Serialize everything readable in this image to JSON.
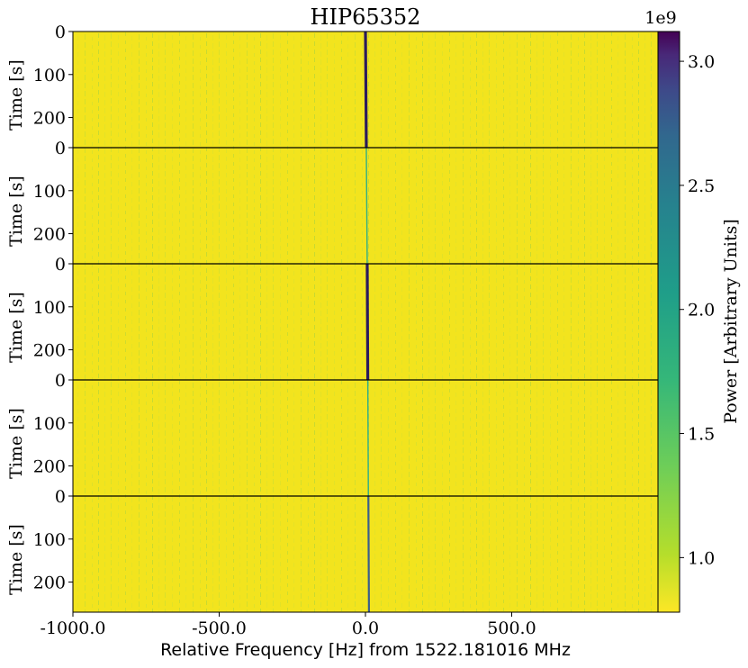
{
  "chart_data": {
    "type": "heatmap",
    "title": "HIP65352",
    "xlabel": "Relative Frequency [Hz] from 1522.181016 MHz",
    "ylabel": "Time [s]",
    "xlim": [
      -1000,
      1000
    ],
    "x_ticks": [
      -1000,
      -500,
      0,
      500
    ],
    "x_tick_labels": [
      "-1000.0",
      "-500.0",
      "0.0",
      "500.0"
    ],
    "panel_ylim": [
      0,
      270
    ],
    "y_ticks": [
      0,
      100,
      200
    ],
    "y_tick_labels": [
      "0",
      "100",
      "200"
    ],
    "colormap": "viridis",
    "background_color": "#f2e41e",
    "colorbar": {
      "label": "Power [Arbitrary Units]",
      "scale_label": "1e9",
      "range": [
        0.78,
        3.12
      ],
      "ticks": [
        1.0,
        1.5,
        2.0,
        2.5,
        3.0
      ],
      "tick_labels": [
        "1.0",
        "1.5",
        "2.0",
        "2.5",
        "3.0"
      ]
    },
    "panels": [
      {
        "index": 1,
        "signal": "strong",
        "drift_start_hz": 0,
        "drift_end_hz": 3
      },
      {
        "index": 2,
        "signal": "faint",
        "drift_start_hz": 3,
        "drift_end_hz": 6
      },
      {
        "index": 3,
        "signal": "strong",
        "drift_start_hz": 6,
        "drift_end_hz": 8
      },
      {
        "index": 4,
        "signal": "faint",
        "drift_start_hz": 8,
        "drift_end_hz": 10
      },
      {
        "index": 5,
        "signal": "medium",
        "drift_start_hz": 10,
        "drift_end_hz": 12
      }
    ]
  }
}
